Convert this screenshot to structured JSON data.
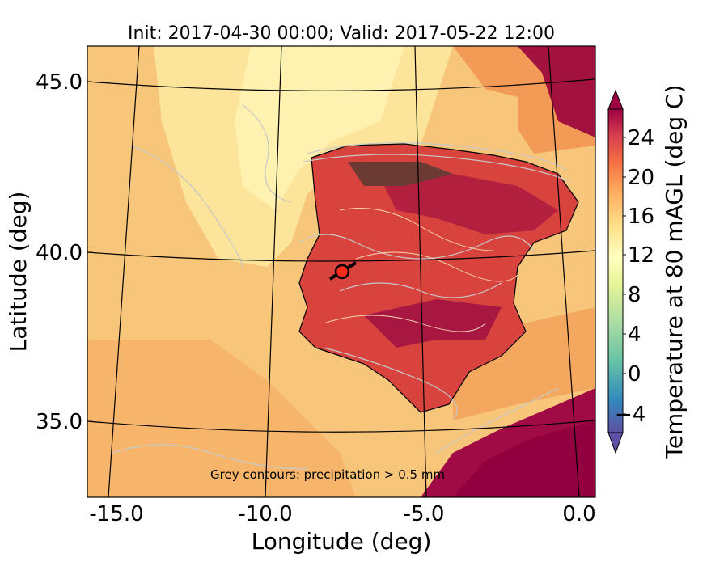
{
  "title": "Init: 2017-04-30 00:00; Valid: 2017-05-22 12:00",
  "x_axis": {
    "label": "Longitude (deg)",
    "ticks": [
      "-15.0",
      "-10.0",
      "-5.0",
      "0.0"
    ]
  },
  "y_axis": {
    "label": "Latitude (deg)",
    "ticks": [
      "45.0",
      "40.0",
      "35.0"
    ]
  },
  "annotation": "Grey contours: precipitation > 0.5 mm",
  "colorbar": {
    "label": "Temperature at 80 mAGL (deg C)",
    "ticks": [
      "24",
      "20",
      "16",
      "12",
      "8",
      "4",
      "0",
      "−4"
    ],
    "colormap": "Spectral_r",
    "extend": "both"
  },
  "colors": {
    "ocean_warm": "#f9c77a",
    "ocean_cool": "#fde59b",
    "land_hot": "#d53e4f",
    "land_very_hot": "#9e0142",
    "precip_contour": "#c8c8c8",
    "marker": "#ff2a1a"
  }
}
